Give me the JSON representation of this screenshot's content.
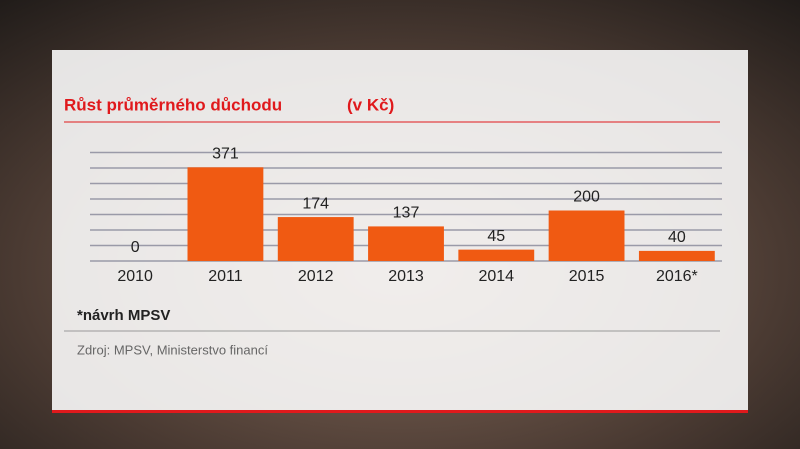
{
  "chart_data": {
    "type": "bar",
    "title": "Růst průměrného důchodu",
    "subtitle": "(v Kč)",
    "categories": [
      "2010",
      "2011",
      "2012",
      "2013",
      "2014",
      "2015",
      "2016*"
    ],
    "values": [
      0,
      371,
      174,
      137,
      45,
      200,
      40
    ],
    "color": "#f05a12",
    "ylim": [
      0,
      400
    ],
    "grid": true,
    "footnote": "*návrh MPSV",
    "source": "Zdroj: MPSV, Ministerstvo financí"
  }
}
